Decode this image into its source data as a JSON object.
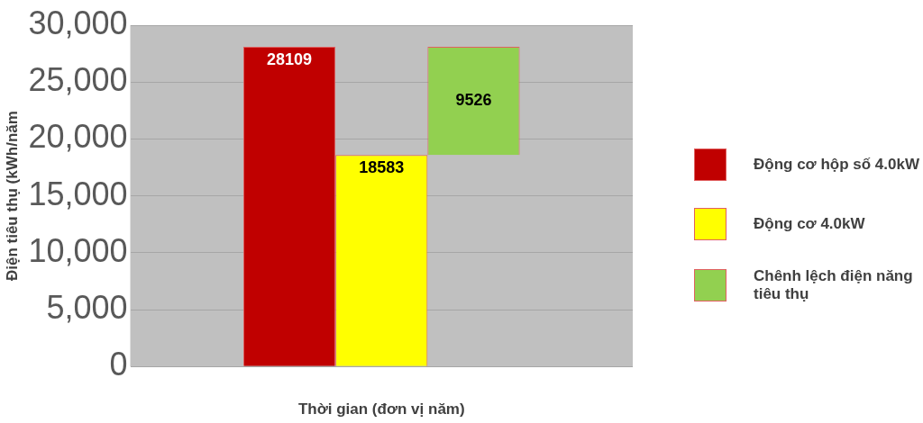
{
  "chart_data": {
    "type": "bar",
    "xlabel": "Thời gian (đơn vị năm)",
    "ylabel": "Điện tiêu thụ (kWh/năm",
    "categories": [
      null
    ],
    "series": [
      {
        "name": "Động cơ hộp số 4.0kW",
        "color": "#c00000",
        "values": [
          28109
        ]
      },
      {
        "name": "Động cơ 4.0kW",
        "color": "#ffff00",
        "values": [
          18583
        ]
      },
      {
        "name": "Chênh lệch điện năng tiêu thụ",
        "color": "#92d050",
        "values": [
          9526
        ],
        "base": [
          18583
        ]
      }
    ],
    "ylim": [
      0,
      30000
    ],
    "yticks": [
      {
        "value": 0,
        "label": "0"
      },
      {
        "value": 5000,
        "label": "5,000"
      },
      {
        "value": 10000,
        "label": "10,000"
      },
      {
        "value": 15000,
        "label": "15,000"
      },
      {
        "value": 20000,
        "label": "20,000"
      },
      {
        "value": 25000,
        "label": "25,000"
      },
      {
        "value": 30000,
        "label": "30,000"
      }
    ],
    "grid": "y",
    "legend": "right",
    "data_labels": true
  }
}
